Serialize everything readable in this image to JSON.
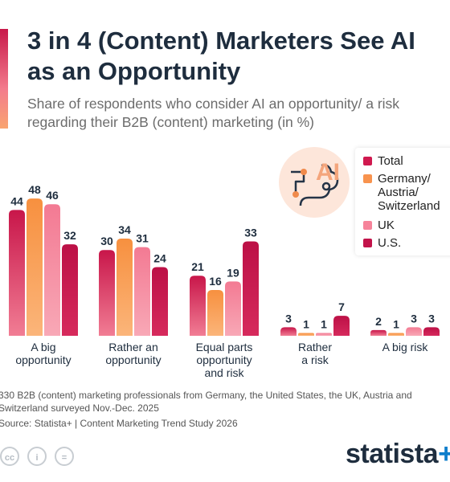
{
  "header": {
    "title": "3 in 4 (Content) Marketers See AI as an Opportunity",
    "subtitle": "Share of respondents who consider AI an opportunity/ a risk regarding their B2B (content) marketing (in %)"
  },
  "badge": {
    "text": "AI",
    "icon": "ai-brain-icon"
  },
  "footer": {
    "note": "330 B2B (content) marketing professionals from Germany, the United States, the UK, Austria and Switzerland surveyed Nov.-Dec. 2025",
    "source": "Source: Statista+ | Content Marketing Trend Study 2026",
    "brand": "statista",
    "brand_plus": "+",
    "license_icons": [
      "cc",
      "i",
      "="
    ]
  },
  "colors": {
    "Total": "#d0194f",
    "Germany/Austria/Switzerland": "#f8934e",
    "UK": "#f6839a",
    "US": "#c2134a"
  },
  "chart_data": {
    "type": "bar",
    "categories": [
      "A big\nopportunity",
      "Rather an\nopportunity",
      "Equal parts\nopportunity\nand risk",
      "Rather\na risk",
      "A big risk"
    ],
    "series": [
      {
        "name": "Total",
        "values": [
          44,
          30,
          21,
          3,
          2
        ]
      },
      {
        "name": "Germany/\nAustria/\nSwitzerland",
        "values": [
          48,
          34,
          16,
          1,
          1
        ]
      },
      {
        "name": "UK",
        "values": [
          46,
          31,
          19,
          1,
          3
        ]
      },
      {
        "name": "U.S.",
        "values": [
          32,
          24,
          33,
          7,
          3
        ]
      }
    ],
    "ylim": [
      0,
      48
    ],
    "grid": false,
    "legend": "top-right"
  }
}
